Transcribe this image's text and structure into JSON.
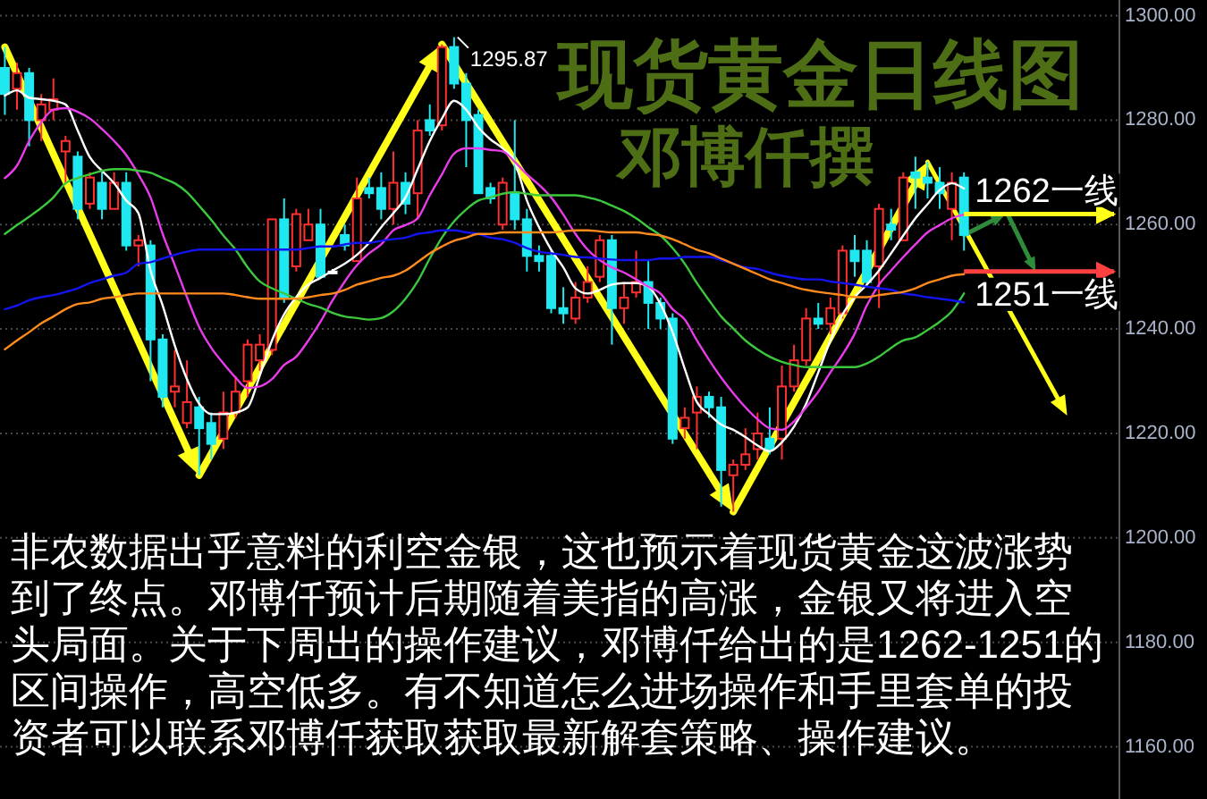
{
  "chart_data": {
    "type": "candlestick",
    "title": "现货黄金日线图",
    "subtitle": "邓博仟撰",
    "categories": [
      null,
      null,
      null,
      null,
      null,
      null,
      null,
      null,
      null,
      null,
      null,
      null,
      null,
      null,
      null,
      null,
      null,
      null,
      null,
      null,
      null,
      null,
      null,
      null,
      null,
      null,
      null,
      null,
      null,
      null,
      null,
      null,
      null,
      null,
      null,
      null,
      null,
      null,
      null,
      null,
      null,
      null,
      null,
      null,
      null,
      null,
      null,
      null,
      null,
      null,
      null,
      null,
      null,
      null,
      null,
      null,
      null,
      null,
      null,
      null,
      null,
      null,
      null,
      null,
      null,
      null,
      null,
      null,
      null,
      null,
      null,
      null,
      null,
      null,
      null,
      null,
      null,
      null,
      null,
      null
    ],
    "ohlc": [
      [
        1290,
        1294,
        1281,
        1285
      ],
      [
        1286,
        1291,
        1282,
        1289
      ],
      [
        1289,
        1290,
        1275,
        1280
      ],
      [
        1280,
        1285,
        1276,
        1283
      ],
      [
        1282,
        1288,
        1280,
        1284
      ],
      [
        1274,
        1277,
        1268,
        1276
      ],
      [
        1273,
        1274,
        1261,
        1263
      ],
      [
        1264,
        1270,
        1263,
        1269
      ],
      [
        1268,
        1270,
        1261,
        1263
      ],
      [
        1263,
        1270,
        1263,
        1268
      ],
      [
        1268,
        1270,
        1255,
        1256
      ],
      [
        1256,
        1258,
        1252,
        1257
      ],
      [
        1256,
        1257,
        1230,
        1238
      ],
      [
        1238,
        1239,
        1225,
        1227
      ],
      [
        1228,
        1236,
        1225,
        1229
      ],
      [
        1222,
        1234,
        1221,
        1226
      ],
      [
        1225,
        1227,
        1212,
        1221
      ],
      [
        1222,
        1224,
        1215,
        1218
      ],
      [
        1219,
        1228,
        1217,
        1224
      ],
      [
        1224,
        1231,
        1223,
        1228
      ],
      [
        1230,
        1238,
        1227,
        1237
      ],
      [
        1234,
        1239,
        1232,
        1237
      ],
      [
        1236,
        1261,
        1235,
        1261
      ],
      [
        1261,
        1265,
        1245,
        1246
      ],
      [
        1252,
        1263,
        1251,
        1262
      ],
      [
        1257,
        1263,
        1257,
        1260
      ],
      [
        1260,
        1263,
        1250,
        1250
      ],
      [
        1251,
        1251.5,
        1250.5,
        1251
      ],
      [
        1258,
        1260,
        1255,
        1256
      ],
      [
        1253,
        1269,
        1253,
        1265
      ],
      [
        1267,
        1269,
        1265,
        1266
      ],
      [
        1267,
        1270,
        1261,
        1263
      ],
      [
        1263,
        1274,
        1260,
        1268
      ],
      [
        1268,
        1270,
        1262,
        1264
      ],
      [
        1266,
        1280,
        1261,
        1278
      ],
      [
        1280,
        1283,
        1277,
        1278
      ],
      [
        1279,
        1294.5,
        1278,
        1294
      ],
      [
        1294,
        1295.87,
        1286,
        1287
      ],
      [
        1287,
        1289,
        1271,
        1280
      ],
      [
        1281,
        1282,
        1266,
        1266
      ],
      [
        1267,
        1268,
        1264,
        1265
      ],
      [
        1260,
        1269,
        1259,
        1268
      ],
      [
        1266,
        1280,
        1259,
        1261
      ],
      [
        1261,
        1263,
        1251,
        1254
      ],
      [
        1254,
        1256,
        1251,
        1253
      ],
      [
        1254,
        1255,
        1243,
        1244
      ],
      [
        1244,
        1248,
        1241,
        1243
      ],
      [
        1242,
        1249,
        1241,
        1246
      ],
      [
        1246,
        1252,
        1245,
        1249
      ],
      [
        1250,
        1258,
        1249,
        1257
      ],
      [
        1257,
        1258,
        1237,
        1244
      ],
      [
        1244,
        1249,
        1241,
        1246
      ],
      [
        1247,
        1255,
        1246,
        1249
      ],
      [
        1249,
        1253,
        1240,
        1245
      ],
      [
        1245,
        1246,
        1240,
        1242
      ],
      [
        1242,
        1243,
        1218,
        1219
      ],
      [
        1221,
        1225,
        1219,
        1223
      ],
      [
        1224,
        1229,
        1217,
        1227
      ],
      [
        1227,
        1228,
        1223,
        1225
      ],
      [
        1225,
        1227,
        1206,
        1213
      ],
      [
        1212,
        1215,
        1205,
        1214
      ],
      [
        1214,
        1221,
        1213,
        1216
      ],
      [
        1217,
        1224,
        1215,
        1220
      ],
      [
        1219,
        1225,
        1216,
        1217
      ],
      [
        1219,
        1233,
        1215,
        1229
      ],
      [
        1229,
        1237,
        1228,
        1234
      ],
      [
        1234,
        1244,
        1233,
        1242
      ],
      [
        1242,
        1245,
        1240,
        1241
      ],
      [
        1241,
        1246,
        1239,
        1244
      ],
      [
        1243,
        1256,
        1242,
        1255
      ],
      [
        1255,
        1258,
        1250,
        1253
      ],
      [
        1255,
        1257,
        1248,
        1249
      ],
      [
        1252,
        1264,
        1244,
        1263
      ],
      [
        1260,
        1263,
        1257,
        1259
      ],
      [
        1257,
        1270,
        1257,
        1269
      ],
      [
        1270,
        1273,
        1263,
        1269
      ],
      [
        1269,
        1272,
        1265,
        1268
      ],
      [
        1268,
        1271,
        1263,
        1266
      ],
      [
        1263,
        1270,
        1257,
        1268
      ],
      [
        1269,
        1270,
        1255,
        1258
      ]
    ],
    "colors": [
      "#20e8f0",
      "#ff3030",
      "#20e8f0",
      "#ff3030",
      "#ff3030",
      "#ff3030",
      "#20e8f0",
      "#ff3030",
      "#20e8f0",
      "#ff3030",
      "#20e8f0",
      "#ff3030",
      "#20e8f0",
      "#20e8f0",
      "#ff3030",
      "#ff3030",
      "#20e8f0",
      "#20e8f0",
      "#ff3030",
      "#ff3030",
      "#ff3030",
      "#ff3030",
      "#ff3030",
      "#20e8f0",
      "#ff3030",
      "#ff3030",
      "#20e8f0",
      "#ffffff",
      "#20e8f0",
      "#ff3030",
      "#20e8f0",
      "#20e8f0",
      "#ff3030",
      "#20e8f0",
      "#ff3030",
      "#20e8f0",
      "#ff3030",
      "#20e8f0",
      "#20e8f0",
      "#20e8f0",
      "#20e8f0",
      "#ff3030",
      "#20e8f0",
      "#20e8f0",
      "#20e8f0",
      "#20e8f0",
      "#20e8f0",
      "#ff3030",
      "#ff3030",
      "#ff3030",
      "#20e8f0",
      "#ff3030",
      "#ff3030",
      "#20e8f0",
      "#20e8f0",
      "#20e8f0",
      "#ff3030",
      "#ff3030",
      "#20e8f0",
      "#20e8f0",
      "#ff3030",
      "#ff3030",
      "#ff3030",
      "#20e8f0",
      "#ff3030",
      "#ff3030",
      "#ff3030",
      "#20e8f0",
      "#ff3030",
      "#ff3030",
      "#20e8f0",
      "#20e8f0",
      "#ff3030",
      "#20e8f0",
      "#ff3030",
      "#20e8f0",
      "#20e8f0",
      "#20e8f0",
      "#ff3030",
      "#20e8f0"
    ],
    "series": [
      {
        "type": "line",
        "color": "#ffffff",
        "values": [
          1284.7,
          1285.7,
          1284.3,
          1284.0,
          1283.7,
          1283.0,
          1278.0,
          1272.9,
          1270.3,
          1267.9,
          1264.6,
          1262.2,
          1251.2,
          1244.5,
          1236.8,
          1230.4,
          1225.7,
          1223.7,
          1223.7,
          1224.0,
          1225.0,
          1231.1,
          1237.8,
          1242.8,
          1246.1,
          1248.5,
          1249.8,
          1251.2,
          1252.5,
          1254.2,
          1256.5,
          1259.5,
          1262.2,
          1265.2,
          1270.6,
          1276.0,
          1280.3,
          1283.7,
          1282.0,
          1278.6,
          1276.3,
          1274.6,
          1272.0,
          1264.6,
          1259.5,
          1255.2,
          1251.8,
          1247.8,
          1246.8,
          1247.5,
          1248.5,
          1248.8,
          1248.8,
          1248.1,
          1244.8,
          1239.4,
          1232.4,
          1226.0,
          1223.7,
          1221.7,
          1220.7,
          1219.3,
          1217.7,
          1216.6,
          1218.3,
          1221.3,
          1225.7,
          1231.7,
          1237.8,
          1242.8,
          1246.1,
          1248.5,
          1251.2,
          1254.5,
          1257.9,
          1261.2,
          1263.9,
          1266.6,
          1267.9,
          1266.9
        ]
      },
      {
        "type": "line",
        "color": "#e83ce8",
        "values": [
          1268.9,
          1271.3,
          1276.0,
          1279.6,
          1282.0,
          1282.3,
          1281.6,
          1280.3,
          1278.3,
          1276.0,
          1273.3,
          1269.6,
          1265.2,
          1258.2,
          1252.2,
          1246.1,
          1240.4,
          1236.4,
          1233.4,
          1230.7,
          1228.7,
          1229.0,
          1230.4,
          1233.1,
          1234.7,
          1237.8,
          1241.4,
          1245.5,
          1249.1,
          1252.2,
          1254.5,
          1256.2,
          1258.9,
          1259.9,
          1261.2,
          1265.6,
          1269.6,
          1273.6,
          1274.6,
          1274.6,
          1274.3,
          1274.0,
          1272.0,
          1269.6,
          1267.6,
          1265.2,
          1261.9,
          1258.2,
          1255.2,
          1253.2,
          1251.8,
          1250.8,
          1249.5,
          1248.1,
          1246.8,
          1243.8,
          1241.8,
          1237.8,
          1234.1,
          1230.7,
          1227.7,
          1225.0,
          1222.7,
          1221.0,
          1220.7,
          1222.3,
          1225.0,
          1228.0,
          1231.7,
          1235.1,
          1239.1,
          1244.5,
          1248.5,
          1251.2,
          1253.8,
          1256.2,
          1258.5,
          1259.9,
          1261.2,
          1261.9
        ]
      },
      {
        "type": "line",
        "color": "#3cc83c",
        "values": [
          1258.2,
          1259.9,
          1261.5,
          1263.2,
          1265.2,
          1267.9,
          1268.9,
          1269.6,
          1270.3,
          1270.6,
          1270.6,
          1270.3,
          1269.9,
          1268.9,
          1267.9,
          1266.2,
          1263.6,
          1260.9,
          1257.9,
          1255.2,
          1251.8,
          1249.1,
          1247.8,
          1246.8,
          1245.8,
          1244.8,
          1244.1,
          1243.1,
          1242.4,
          1242.1,
          1241.8,
          1242.1,
          1243.4,
          1245.8,
          1249.1,
          1253.5,
          1257.5,
          1260.6,
          1262.9,
          1264.6,
          1265.2,
          1265.9,
          1266.2,
          1265.9,
          1265.6,
          1265.6,
          1265.6,
          1265.6,
          1265.2,
          1264.6,
          1263.6,
          1262.6,
          1261.2,
          1259.5,
          1257.9,
          1255.5,
          1252.5,
          1248.8,
          1245.5,
          1242.4,
          1240.1,
          1237.8,
          1236.1,
          1234.7,
          1233.7,
          1233.1,
          1232.7,
          1232.7,
          1232.7,
          1232.7,
          1232.7,
          1233.4,
          1234.7,
          1236.4,
          1237.8,
          1238.4,
          1239.8,
          1241.4,
          1243.4,
          1246.8
        ]
      },
      {
        "type": "line",
        "color": "#1414f0",
        "values": [
          1243.8,
          1244.5,
          1245.5,
          1246.1,
          1246.5,
          1247.1,
          1247.8,
          1248.8,
          1249.5,
          1250.2,
          1250.8,
          1252.5,
          1252.8,
          1253.5,
          1254.2,
          1254.8,
          1255.2,
          1255.2,
          1255.2,
          1255.2,
          1255.2,
          1255.2,
          1255.2,
          1255.2,
          1255.2,
          1255.5,
          1255.8,
          1255.8,
          1256.2,
          1256.5,
          1256.5,
          1256.9,
          1257.2,
          1257.5,
          1258.2,
          1258.5,
          1258.9,
          1258.9,
          1258.5,
          1258.2,
          1257.5,
          1257.2,
          1256.5,
          1255.5,
          1254.8,
          1254.5,
          1254.2,
          1253.8,
          1253.7,
          1253.5,
          1253.3,
          1253.2,
          1253.2,
          1253.2,
          1253.5,
          1253.5,
          1253.8,
          1253.8,
          1253.8,
          1253.2,
          1252.5,
          1251.8,
          1251.5,
          1250.8,
          1250.2,
          1249.8,
          1249.5,
          1249.5,
          1249.1,
          1248.8,
          1248.5,
          1248.1,
          1247.8,
          1247.5,
          1246.8,
          1246.5,
          1246.1,
          1245.8,
          1245.5,
          1245.1
        ]
      },
      {
        "type": "line",
        "color": "#ff8a1e",
        "values": [
          1236.1,
          1237.8,
          1239.4,
          1241.1,
          1242.4,
          1243.8,
          1244.8,
          1245.1,
          1245.8,
          1246.1,
          1246.5,
          1246.8,
          1246.8,
          1246.8,
          1246.8,
          1246.8,
          1246.8,
          1246.8,
          1246.8,
          1246.5,
          1246.1,
          1245.8,
          1245.8,
          1245.8,
          1245.8,
          1246.1,
          1246.5,
          1246.8,
          1247.5,
          1248.5,
          1249.1,
          1249.8,
          1250.2,
          1251.2,
          1252.8,
          1254.5,
          1255.8,
          1256.9,
          1257.5,
          1258.2,
          1258.2,
          1258.5,
          1258.5,
          1258.5,
          1258.5,
          1258.5,
          1258.7,
          1258.9,
          1258.9,
          1258.7,
          1258.5,
          1258.5,
          1258.5,
          1258.2,
          1257.9,
          1257.2,
          1256.2,
          1255.2,
          1254.5,
          1253.5,
          1252.5,
          1251.5,
          1250.5,
          1249.5,
          1248.8,
          1248.1,
          1247.5,
          1247.1,
          1246.8,
          1246.5,
          1246.1,
          1246.1,
          1246.5,
          1246.8,
          1247.1,
          1247.8,
          1248.8,
          1249.5,
          1250.2,
          1250.5
        ]
      }
    ],
    "ylim": [
      1150,
      1303
    ],
    "yticks": [
      {
        "value": 1160,
        "label": "1160.00"
      },
      {
        "value": 1180,
        "label": "1180.00"
      },
      {
        "value": 1200,
        "label": "1200.00"
      },
      {
        "value": 1220,
        "label": "1220.00"
      },
      {
        "value": 1240,
        "label": "1240.00"
      },
      {
        "value": 1260,
        "label": "1260.00"
      },
      {
        "value": 1280,
        "label": "1280.00"
      },
      {
        "value": 1300,
        "label": "1300.00"
      }
    ],
    "grid": "y",
    "tick_labels": "y",
    "ref_lines": [
      {
        "axis": "y",
        "value": 1262,
        "label": "1262一线",
        "color": "#ffff1a"
      },
      {
        "axis": "y",
        "value": 1251,
        "label": "1251一线",
        "color": "#ff4040"
      }
    ],
    "annotations": [
      "1295.87",
      "非农数据出乎意料的利空金银，这也预示着现货黄金这波涨势到了终点。邓博仟预计后期随着美指的高涨，金银又将进入空头局面。关于下周出的操作建议，邓博仟给出的是1262-1251的区间操作，高空低多。有不知道怎么进场操作和手里套单的投资者可以联系邓博仟获取获取最新解套策略、操作建议。"
    ]
  }
}
